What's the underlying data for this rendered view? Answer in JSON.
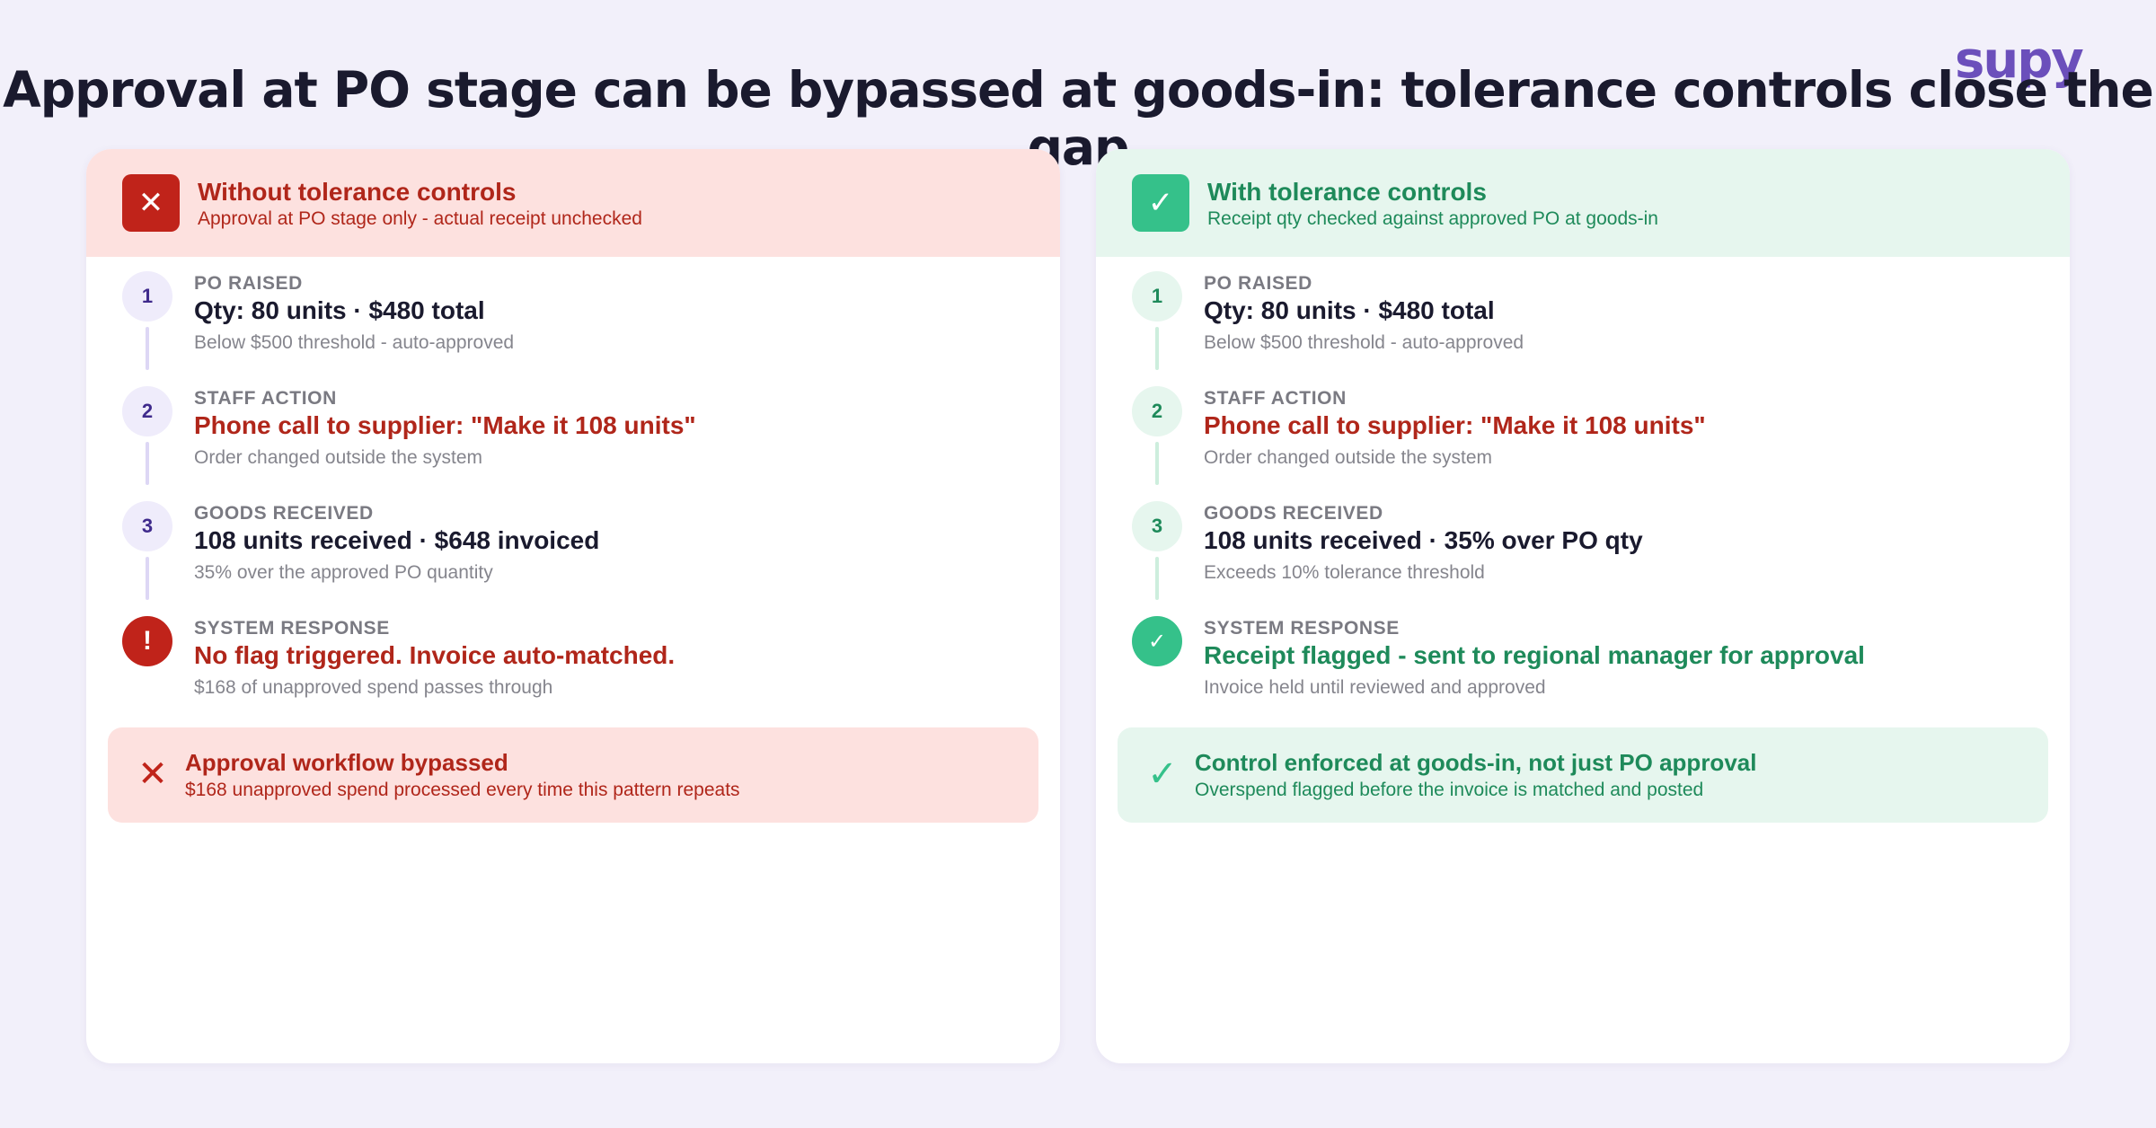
{
  "brand": {
    "logo_text": "supy"
  },
  "title": "Approval at PO stage can be bypassed at goods-in: tolerance controls close the gap",
  "left_panel": {
    "icon": "close-icon",
    "header_icon_glyph": "✕",
    "title": "Without tolerance controls",
    "subtitle": "Approval at PO stage only - actual receipt unchecked",
    "steps": [
      {
        "marker": "1",
        "label": "PO RAISED",
        "main": "Qty: 80 units  ·  $480 total",
        "note": "Below $500 threshold - auto-approved"
      },
      {
        "marker": "2",
        "label": "STAFF ACTION",
        "main": "Phone call to supplier: \"Make it 108 units\"",
        "note": "Order changed outside the system"
      },
      {
        "marker": "3",
        "label": "GOODS RECEIVED",
        "main": "108 units received  ·  $648 invoiced",
        "note": "35% over the approved PO quantity"
      },
      {
        "marker": "!",
        "label": "SYSTEM RESPONSE",
        "main": "No flag triggered. Invoice auto-matched.",
        "note": "$168 of unapproved spend passes through"
      }
    ],
    "outcome": {
      "icon": "close-icon",
      "icon_glyph": "✕",
      "title": "Approval workflow bypassed",
      "subtitle": "$168 unapproved spend processed every time this pattern repeats"
    }
  },
  "right_panel": {
    "icon": "check-icon",
    "header_icon_glyph": "✓",
    "title": "With tolerance controls",
    "subtitle": "Receipt qty checked against approved PO at goods-in",
    "steps": [
      {
        "marker": "1",
        "label": "PO RAISED",
        "main": "Qty: 80 units  ·  $480 total",
        "note": "Below $500 threshold - auto-approved"
      },
      {
        "marker": "2",
        "label": "STAFF ACTION",
        "main": "Phone call to supplier: \"Make it 108 units\"",
        "note": "Order changed outside the system"
      },
      {
        "marker": "3",
        "label": "GOODS RECEIVED",
        "main": "108 units received  ·  35% over PO qty",
        "note": "Exceeds 10% tolerance threshold"
      },
      {
        "marker": "✓",
        "label": "SYSTEM RESPONSE",
        "main": "Receipt flagged - sent to regional manager for approval",
        "note": "Invoice held until reviewed and approved"
      }
    ],
    "outcome": {
      "icon": "check-icon",
      "icon_glyph": "✓",
      "title": "Control enforced at goods-in, not just PO approval",
      "subtitle": "Overspend flagged before the invoice is matched and posted"
    }
  },
  "colors": {
    "background": "#f2f0fa",
    "negative": "#c0231a",
    "negative_bg": "#fde1df",
    "positive": "#35c18a",
    "positive_text": "#1e8a5a",
    "positive_bg": "#e6f6ee",
    "brand": "#6b4fbb"
  }
}
